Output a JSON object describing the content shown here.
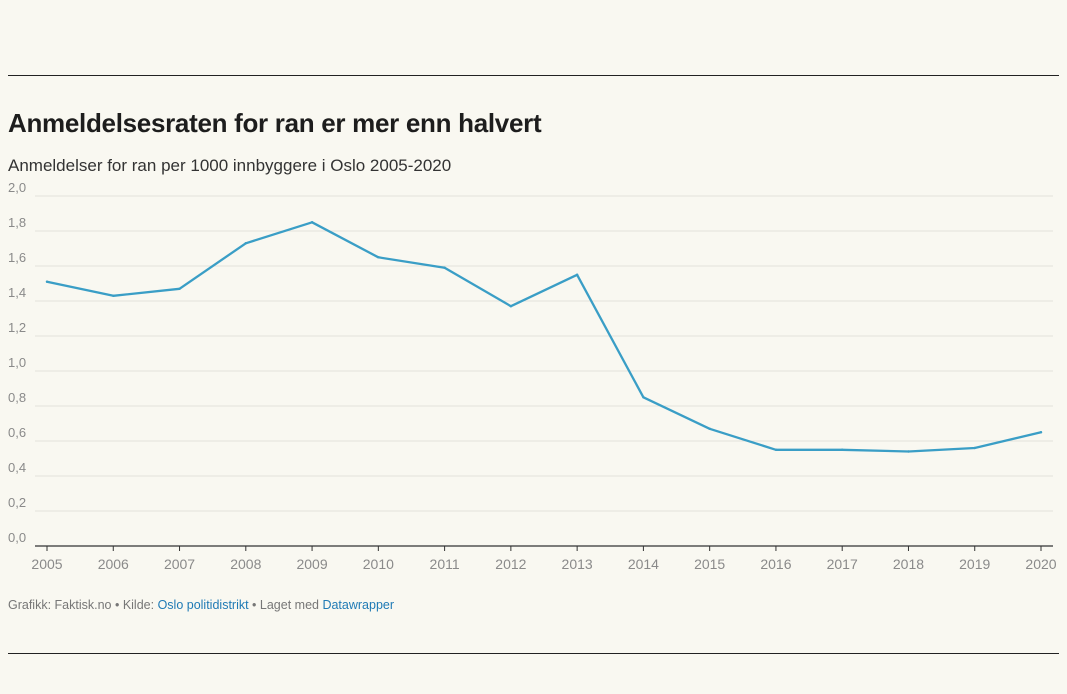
{
  "title": "Anmeldelsesraten for ran er mer enn halvert",
  "subtitle": "Anmeldelser for ran per 1000 innbyggere i Oslo 2005-2020",
  "footer": {
    "graphic": "Grafikk: Faktisk.no",
    "sep1": " • Kilde: ",
    "source": "Oslo politidistrikt",
    "sep2": " • Laget med ",
    "tool": "Datawrapper"
  },
  "colors": {
    "line": "#3a9ec6",
    "grid": "#e3e2da",
    "axis": "#333333",
    "tick_text": "#8a8a8a"
  },
  "chart_data": {
    "type": "line",
    "title": "Anmeldelsesraten for ran er mer enn halvert",
    "subtitle": "Anmeldelser for ran per 1000 innbyggere i Oslo 2005-2020",
    "x": [
      2005,
      2006,
      2007,
      2008,
      2009,
      2010,
      2011,
      2012,
      2013,
      2014,
      2015,
      2016,
      2017,
      2018,
      2019,
      2020
    ],
    "series": [
      {
        "values": [
          1.51,
          1.43,
          1.47,
          1.73,
          1.85,
          1.65,
          1.59,
          1.37,
          1.55,
          0.85,
          0.67,
          0.55,
          0.55,
          0.54,
          0.56,
          0.65
        ]
      }
    ],
    "ylim": [
      0,
      2.0
    ],
    "y_ticks": [
      "0,0",
      "0,2",
      "0,4",
      "0,6",
      "0,8",
      "1,0",
      "1,2",
      "1,4",
      "1,6",
      "1,8",
      "2,0"
    ],
    "x_ticks": [
      "2005",
      "2006",
      "2007",
      "2008",
      "2009",
      "2010",
      "2011",
      "2012",
      "2013",
      "2014",
      "2015",
      "2016",
      "2017",
      "2018",
      "2019",
      "2020"
    ],
    "grid": true,
    "legend": "none"
  }
}
